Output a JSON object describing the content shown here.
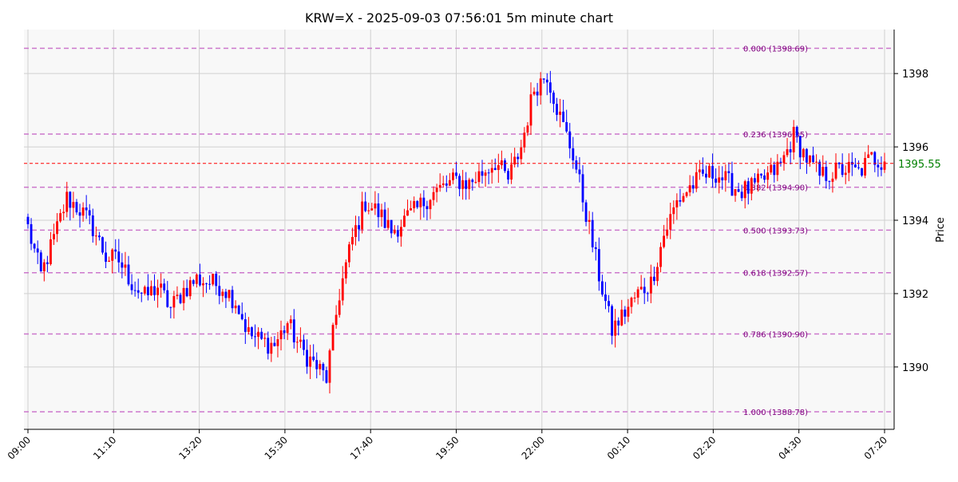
{
  "chart_data": {
    "type": "candlestick",
    "title": "KRW=X - 2025-09-03 07:56:01 5m minute chart",
    "ylabel": "Price",
    "ylim": [
      1388.3,
      1399.2
    ],
    "y_ticks": [
      1390,
      1392,
      1394,
      1396,
      1398
    ],
    "x_tick_labels": [
      "09:00",
      "11:10",
      "13:20",
      "15:30",
      "17:40",
      "19:50",
      "22:00",
      "00:10",
      "02:20",
      "04:30",
      "07:20"
    ],
    "current_price": 1395.55,
    "current_price_label": "1395.55",
    "grid": true,
    "fib_levels": [
      {
        "label": "0.000 (1398.69)",
        "price": 1398.69
      },
      {
        "label": "0.236 (1396.35)",
        "price": 1396.35
      },
      {
        "label": "0.382 (1394.90)",
        "price": 1394.9
      },
      {
        "label": "0.500 (1393.73)",
        "price": 1393.73
      },
      {
        "label": "0.618 (1392.57)",
        "price": 1392.57
      },
      {
        "label": "0.786 (1390.90)",
        "price": 1390.9
      },
      {
        "label": "1.000 (1388.78)",
        "price": 1388.78
      }
    ],
    "colors": {
      "up": "#ff0000",
      "down": "#0000ff",
      "fib": "#cc77cc",
      "fib_text": "#800080",
      "current": "#ff0000",
      "current_text": "#008000",
      "plot_bg": "#f8f8f8",
      "grid": "#d0d0d0"
    },
    "anchor_closes": [
      1393.8,
      1392.5,
      1393.5,
      1394.6,
      1394.3,
      1393.8,
      1393.0,
      1392.9,
      1392.3,
      1391.9,
      1392.2,
      1391.6,
      1392.1,
      1392.4,
      1392.3,
      1392.2,
      1391.8,
      1390.9,
      1390.7,
      1390.6,
      1391.2,
      1390.5,
      1390.1,
      1389.7,
      1392.0,
      1393.5,
      1394.5,
      1394.2,
      1393.7,
      1394.0,
      1394.3,
      1394.7,
      1394.9,
      1395.1,
      1395.0,
      1395.3,
      1395.6,
      1395.1,
      1396.0,
      1397.6,
      1398.0,
      1396.8,
      1395.8,
      1394.2,
      1392.5,
      1391.0,
      1391.5,
      1392.0,
      1392.3,
      1393.6,
      1394.5,
      1394.9,
      1395.2,
      1395.3,
      1395.0,
      1394.8,
      1394.9,
      1395.2,
      1395.5,
      1396.3,
      1395.7,
      1395.2,
      1395.3,
      1395.4,
      1395.3,
      1395.7,
      1395.6
    ]
  }
}
